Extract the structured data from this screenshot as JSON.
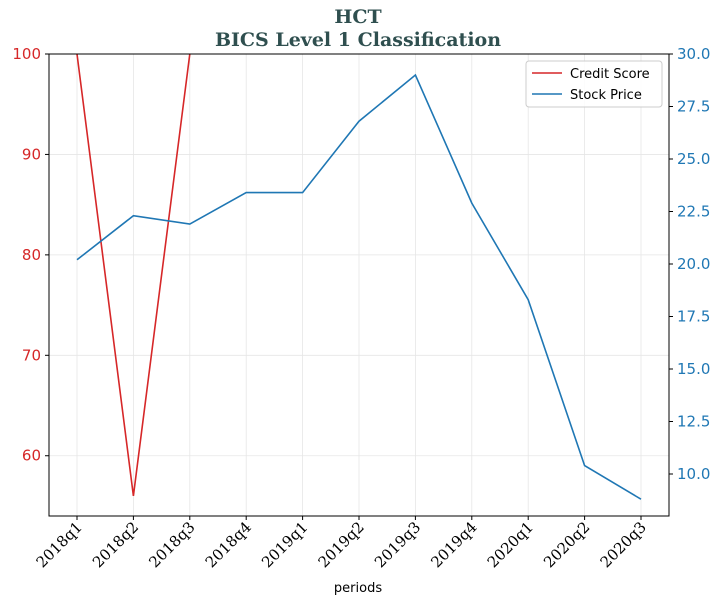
{
  "chart_data": {
    "type": "line",
    "title": "HCT",
    "subtitle": "BICS Level 1 Classification",
    "xlabel": "periods",
    "categories": [
      "2018q1",
      "2018q2",
      "2018q3",
      "2018q4",
      "2019q1",
      "2019q2",
      "2019q3",
      "2019q4",
      "2020q1",
      "2020q2",
      "2020q3"
    ],
    "series": [
      {
        "name": "Credit Score",
        "axis": "left",
        "color": "#d62728",
        "values": [
          100,
          56,
          100,
          null,
          null,
          null,
          null,
          null,
          null,
          null,
          null
        ]
      },
      {
        "name": "Stock Price",
        "axis": "right",
        "color": "#1f77b4",
        "values": [
          20.2,
          22.3,
          21.9,
          23.4,
          23.4,
          26.8,
          29.0,
          22.9,
          18.3,
          10.4,
          8.8
        ]
      }
    ],
    "y_left": {
      "ylim": [
        54,
        100
      ],
      "ticks": [
        60,
        70,
        80,
        90,
        100
      ],
      "color": "#d62728"
    },
    "y_right": {
      "ylim": [
        8.0,
        30.0
      ],
      "ticks": [
        10.0,
        12.5,
        15.0,
        17.5,
        20.0,
        22.5,
        25.0,
        27.5,
        30.0
      ],
      "color": "#1f77b4"
    },
    "grid": true,
    "legend": "top-right"
  }
}
